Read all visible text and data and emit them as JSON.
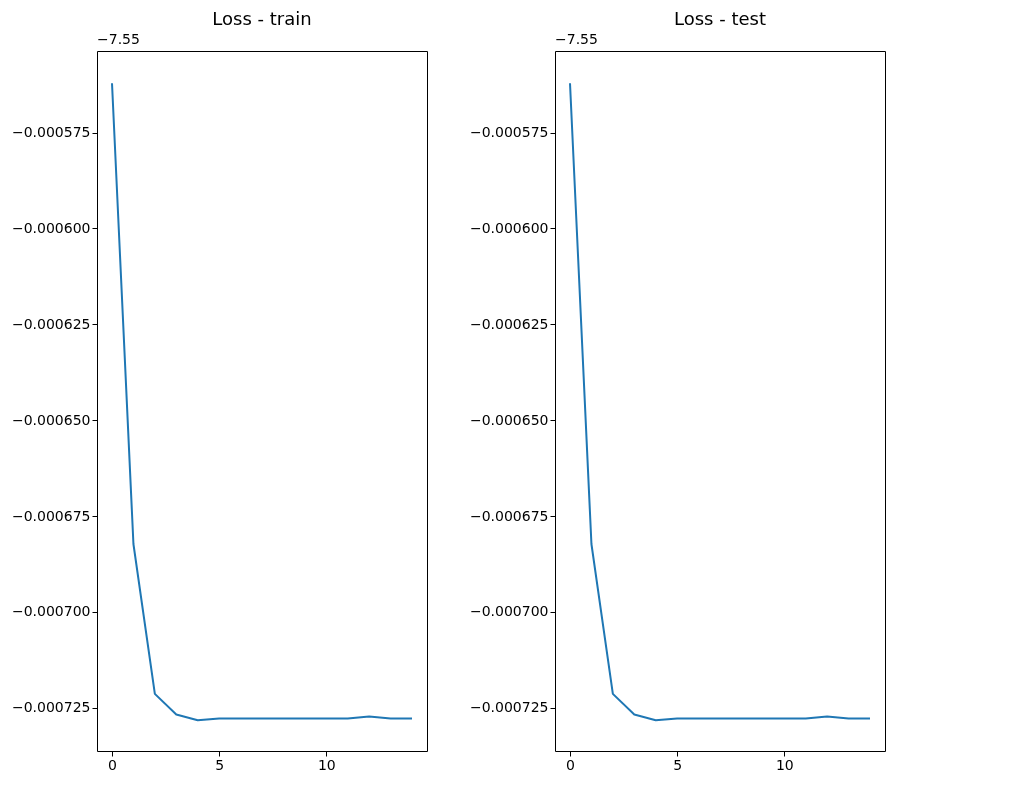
{
  "chart_data": [
    {
      "type": "line",
      "title": "Loss - train",
      "annotations": [
        "−7.55"
      ],
      "x": [
        0,
        1,
        2,
        3,
        4,
        5,
        6,
        7,
        8,
        9,
        10,
        11,
        12,
        13,
        14
      ],
      "series": [
        {
          "color": "#1f77b4",
          "values": [
            -0.0005621,
            -0.0006823,
            -0.0007214,
            -0.0007268,
            -0.0007283,
            -0.0007278,
            -0.0007278,
            -0.0007278,
            -0.0007278,
            -0.0007278,
            -0.0007278,
            -0.0007278,
            -0.0007273,
            -0.0007278,
            -0.0007278
          ]
        }
      ],
      "xlim": [
        -0.7,
        14.7
      ],
      "xticks": [
        0,
        5,
        10
      ],
      "ylim": [
        -0.0007363,
        -0.0005537
      ],
      "yticks": [
        {
          "value": -0.000575,
          "label": "−0.000575"
        },
        {
          "value": -0.0006,
          "label": "−0.000600"
        },
        {
          "value": -0.000625,
          "label": "−0.000625"
        },
        {
          "value": -0.00065,
          "label": "−0.000650"
        },
        {
          "value": -0.000675,
          "label": "−0.000675"
        },
        {
          "value": -0.0007,
          "label": "−0.000700"
        },
        {
          "value": -0.000725,
          "label": "−0.000725"
        }
      ],
      "grid": false
    },
    {
      "type": "line",
      "title": "Loss - test",
      "annotations": [
        "−7.55"
      ],
      "x": [
        0,
        1,
        2,
        3,
        4,
        5,
        6,
        7,
        8,
        9,
        10,
        11,
        12,
        13,
        14
      ],
      "series": [
        {
          "color": "#1f77b4",
          "values": [
            -0.0005621,
            -0.0006823,
            -0.0007214,
            -0.0007268,
            -0.0007283,
            -0.0007278,
            -0.0007278,
            -0.0007278,
            -0.0007278,
            -0.0007278,
            -0.0007278,
            -0.0007278,
            -0.0007273,
            -0.0007278,
            -0.0007278
          ]
        }
      ],
      "xlim": [
        -0.7,
        14.7
      ],
      "xticks": [
        0,
        5,
        10
      ],
      "ylim": [
        -0.0007363,
        -0.0005537
      ],
      "yticks": [
        {
          "value": -0.000575,
          "label": "−0.000575"
        },
        {
          "value": -0.0006,
          "label": "−0.000600"
        },
        {
          "value": -0.000625,
          "label": "−0.000625"
        },
        {
          "value": -0.00065,
          "label": "−0.000650"
        },
        {
          "value": -0.000675,
          "label": "−0.000675"
        },
        {
          "value": -0.0007,
          "label": "−0.000700"
        },
        {
          "value": -0.000725,
          "label": "−0.000725"
        }
      ],
      "grid": false
    }
  ]
}
